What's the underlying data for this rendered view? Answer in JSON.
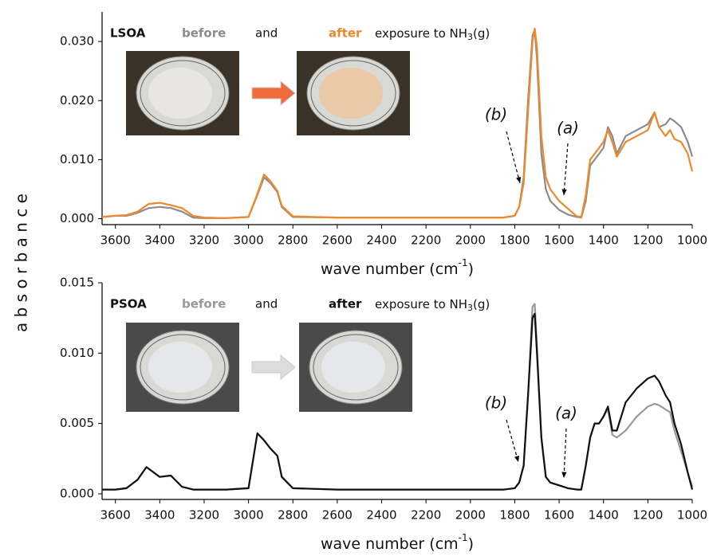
{
  "chart_data": [
    {
      "type": "line",
      "title": "LSOA",
      "connector": "and",
      "exposure": [
        "exposure to NH",
        "3",
        "(g)"
      ],
      "xlabel": [
        "wave number (cm",
        "-1",
        ")"
      ],
      "ylabel": "a b s o r b a n c e",
      "annotations": [
        "(b)",
        "(a)"
      ],
      "xlim": [
        3660,
        1000
      ],
      "ylim": [
        -0.001,
        0.035
      ],
      "xticks": [
        3600,
        3400,
        3200,
        3000,
        2800,
        2600,
        2400,
        2200,
        2000,
        1800,
        1600,
        1400,
        1200,
        1000
      ],
      "yticks": [
        {
          "value": 0,
          "label": "0.000"
        },
        {
          "value": 0.01,
          "label": "0.010"
        },
        {
          "value": 0.02,
          "label": "0.020"
        },
        {
          "value": 0.03,
          "label": "0.030"
        }
      ],
      "x": [
        3660,
        3600,
        3550,
        3500,
        3450,
        3400,
        3350,
        3300,
        3250,
        3200,
        3100,
        3000,
        2960,
        2930,
        2900,
        2870,
        2850,
        2800,
        2600,
        2400,
        2200,
        2000,
        1850,
        1800,
        1780,
        1760,
        1740,
        1720,
        1710,
        1700,
        1680,
        1660,
        1640,
        1600,
        1560,
        1520,
        1500,
        1480,
        1460,
        1440,
        1420,
        1400,
        1380,
        1360,
        1340,
        1300,
        1250,
        1200,
        1170,
        1150,
        1120,
        1100,
        1080,
        1050,
        1020,
        1000
      ],
      "series": [
        {
          "name": "before",
          "color": "#8c8c8c",
          "values": [
            0.0003,
            0.0005,
            0.0005,
            0.001,
            0.0018,
            0.002,
            0.0018,
            0.0012,
            0.0002,
            0.0001,
            0.0001,
            0.0003,
            0.004,
            0.007,
            0.006,
            0.0045,
            0.002,
            0.0003,
            0.0002,
            0.0002,
            0.0002,
            0.0002,
            0.0002,
            0.0005,
            0.002,
            0.007,
            0.02,
            0.031,
            0.032,
            0.027,
            0.011,
            0.005,
            0.003,
            0.0015,
            0.0007,
            0.0003,
            0.0002,
            0.003,
            0.009,
            0.01,
            0.011,
            0.012,
            0.0155,
            0.014,
            0.011,
            0.014,
            0.015,
            0.016,
            0.018,
            0.0155,
            0.016,
            0.017,
            0.0165,
            0.0155,
            0.013,
            0.0105
          ]
        },
        {
          "name": "after",
          "color": "#f0892a",
          "values": [
            0.0003,
            0.0005,
            0.0006,
            0.0012,
            0.0025,
            0.0027,
            0.0023,
            0.0018,
            0.0005,
            0.0002,
            0.0001,
            0.0003,
            0.0042,
            0.0075,
            0.0063,
            0.0047,
            0.0022,
            0.0004,
            0.0002,
            0.0002,
            0.0002,
            0.0002,
            0.0002,
            0.0005,
            0.002,
            0.006,
            0.018,
            0.03,
            0.0322,
            0.029,
            0.014,
            0.007,
            0.005,
            0.003,
            0.0017,
            0.0004,
            0.0003,
            0.004,
            0.01,
            0.011,
            0.012,
            0.013,
            0.015,
            0.013,
            0.0105,
            0.013,
            0.014,
            0.015,
            0.018,
            0.0155,
            0.014,
            0.015,
            0.0135,
            0.013,
            0.011,
            0.008
          ]
        }
      ]
    },
    {
      "type": "line",
      "title": "PSOA",
      "connector": "and",
      "exposure": [
        "exposure to NH",
        "3",
        "(g)"
      ],
      "xlabel": [
        "wave number (cm",
        "-1",
        ")"
      ],
      "annotations": [
        "(b)",
        "(a)"
      ],
      "xlim": [
        3660,
        1000
      ],
      "ylim": [
        -0.0004,
        0.015
      ],
      "xticks": [
        3600,
        3400,
        3200,
        3000,
        2800,
        2600,
        2400,
        2200,
        2000,
        1800,
        1600,
        1400,
        1200,
        1000
      ],
      "yticks": [
        {
          "value": 0,
          "label": "0.000"
        },
        {
          "value": 0.005,
          "label": "0.005"
        },
        {
          "value": 0.01,
          "label": "0.010"
        },
        {
          "value": 0.015,
          "label": "0.015"
        }
      ],
      "x": [
        3660,
        3600,
        3550,
        3500,
        3460,
        3400,
        3350,
        3300,
        3250,
        3200,
        3100,
        3000,
        2960,
        2930,
        2900,
        2870,
        2850,
        2800,
        2600,
        2400,
        2200,
        2000,
        1850,
        1800,
        1780,
        1760,
        1740,
        1720,
        1710,
        1700,
        1680,
        1660,
        1640,
        1600,
        1560,
        1520,
        1500,
        1480,
        1460,
        1440,
        1420,
        1400,
        1380,
        1360,
        1340,
        1300,
        1250,
        1200,
        1170,
        1150,
        1120,
        1100,
        1080,
        1050,
        1020,
        1000
      ],
      "series": [
        {
          "name": "before",
          "color": "#999999",
          "values": [
            0.0003,
            0.0003,
            0.0004,
            0.001,
            0.0019,
            0.0012,
            0.0013,
            0.0005,
            0.0003,
            0.0003,
            0.0003,
            0.0004,
            0.0043,
            0.0038,
            0.0032,
            0.0027,
            0.0012,
            0.0004,
            0.0003,
            0.0003,
            0.0003,
            0.0003,
            0.0003,
            0.0004,
            0.0008,
            0.002,
            0.007,
            0.0133,
            0.0135,
            0.0105,
            0.004,
            0.0012,
            0.0008,
            0.0006,
            0.0004,
            0.0003,
            0.0003,
            0.002,
            0.004,
            0.005,
            0.005,
            0.0055,
            0.006,
            0.0042,
            0.004,
            0.0045,
            0.0055,
            0.0062,
            0.0064,
            0.0063,
            0.006,
            0.0058,
            0.0045,
            0.003,
            0.0015,
            0.0005
          ]
        },
        {
          "name": "after",
          "color": "#111111",
          "values": [
            0.0003,
            0.0003,
            0.0004,
            0.001,
            0.0019,
            0.0012,
            0.0013,
            0.0005,
            0.0003,
            0.0003,
            0.0003,
            0.0004,
            0.0043,
            0.0038,
            0.0032,
            0.0027,
            0.0012,
            0.0004,
            0.0003,
            0.0003,
            0.0003,
            0.0003,
            0.0003,
            0.0004,
            0.0008,
            0.002,
            0.007,
            0.0125,
            0.0128,
            0.01,
            0.004,
            0.0012,
            0.0008,
            0.0006,
            0.0004,
            0.0003,
            0.0003,
            0.002,
            0.004,
            0.005,
            0.005,
            0.0055,
            0.0062,
            0.0045,
            0.0045,
            0.0065,
            0.0075,
            0.0082,
            0.0084,
            0.008,
            0.007,
            0.0065,
            0.005,
            0.0035,
            0.0015,
            0.0003
          ]
        }
      ]
    }
  ]
}
